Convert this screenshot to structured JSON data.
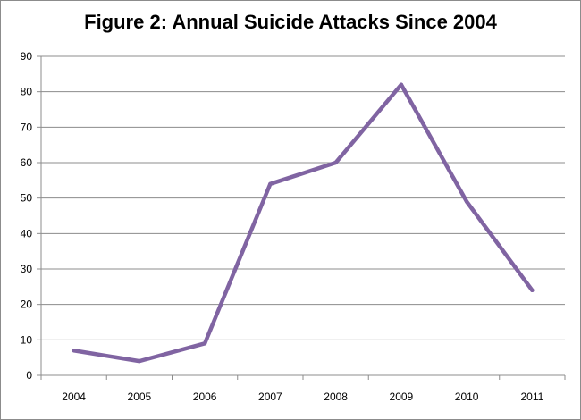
{
  "chart_data": {
    "type": "line",
    "title": "Figure 2: Annual Suicide Attacks Since 2004",
    "xlabel": "",
    "ylabel": "",
    "categories": [
      "2004",
      "2005",
      "2006",
      "2007",
      "2008",
      "2009",
      "2010",
      "2011"
    ],
    "series": [
      {
        "values": [
          7,
          4,
          9,
          54,
          60,
          82,
          49,
          24
        ],
        "color": "#8064a2"
      }
    ],
    "ylim": [
      0,
      90
    ],
    "yticks": [
      0,
      10,
      20,
      30,
      40,
      50,
      60,
      70,
      80,
      90
    ],
    "grid": true,
    "legend": "none"
  }
}
